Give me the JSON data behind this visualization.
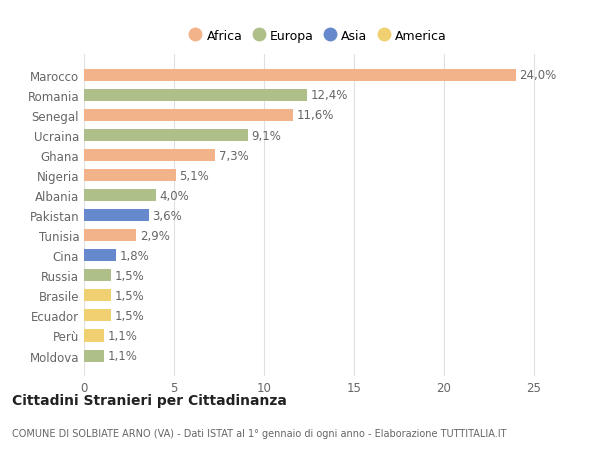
{
  "countries": [
    "Marocco",
    "Romania",
    "Senegal",
    "Ucraina",
    "Ghana",
    "Nigeria",
    "Albania",
    "Pakistan",
    "Tunisia",
    "Cina",
    "Russia",
    "Brasile",
    "Ecuador",
    "Perù",
    "Moldova"
  ],
  "values": [
    24.0,
    12.4,
    11.6,
    9.1,
    7.3,
    5.1,
    4.0,
    3.6,
    2.9,
    1.8,
    1.5,
    1.5,
    1.5,
    1.1,
    1.1
  ],
  "continents": [
    "Africa",
    "Europa",
    "Africa",
    "Europa",
    "Africa",
    "Africa",
    "Europa",
    "Asia",
    "Africa",
    "Asia",
    "Europa",
    "America",
    "America",
    "America",
    "Europa"
  ],
  "colors": {
    "Africa": "#F2B28A",
    "Europa": "#AEBF8A",
    "Asia": "#6688CC",
    "America": "#F0D070"
  },
  "legend_order": [
    "Africa",
    "Europa",
    "Asia",
    "America"
  ],
  "title": "Cittadini Stranieri per Cittadinanza",
  "subtitle": "COMUNE DI SOLBIATE ARNO (VA) - Dati ISTAT al 1° gennaio di ogni anno - Elaborazione TUTTITALIA.IT",
  "xlim": [
    0,
    26
  ],
  "xticks": [
    0,
    5,
    10,
    15,
    20,
    25
  ],
  "bg_color": "#ffffff",
  "bar_height": 0.6,
  "label_fontsize": 8.5,
  "tick_fontsize": 8.5,
  "grid_color": "#e0e0e0"
}
